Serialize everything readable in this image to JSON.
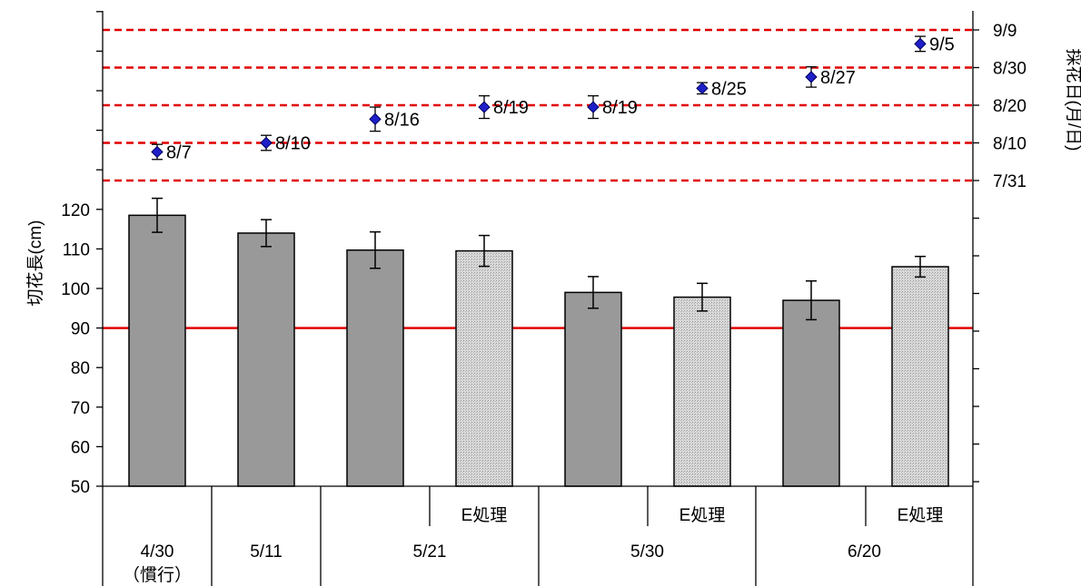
{
  "chart_data": {
    "type": "bar",
    "left_axis": {
      "label": "切花長(cm)",
      "ylim": [
        50,
        130
      ],
      "ticks": [
        50,
        60,
        70,
        80,
        90,
        100,
        110,
        120
      ]
    },
    "right_axis": {
      "label": "採花日(月/日)",
      "tick_labels": [
        "7/31",
        "8/10",
        "8/20",
        "8/30",
        "9/9"
      ]
    },
    "reference_line": {
      "y": 90,
      "color": "#e00000"
    },
    "date_gridline_color": "#e00000",
    "bar_colors": {
      "standard": "#999999",
      "E処理": "#d9d9d9"
    },
    "marker_color": "#1f1fc8",
    "groups": [
      {
        "label": "4/30",
        "sublabel": "（慣行）"
      },
      {
        "label": "5/11",
        "sublabel": ""
      },
      {
        "label": "5/21",
        "sublabel": ""
      },
      {
        "label": "5/30",
        "sublabel": ""
      },
      {
        "label": "6/20",
        "sublabel": ""
      }
    ],
    "bars": [
      {
        "group": 0,
        "treatment": "",
        "value": 118.5,
        "err": 4.3,
        "harvest_label": "8/7",
        "harvest_pos": 0.76,
        "harvest_err": 0.2
      },
      {
        "group": 1,
        "treatment": "",
        "value": 114.0,
        "err": 3.4,
        "harvest_label": "8/10",
        "harvest_pos": 1.0,
        "harvest_err": 0.2
      },
      {
        "group": 2,
        "treatment": "",
        "value": 109.7,
        "err": 4.6,
        "harvest_label": "8/16",
        "harvest_pos": 1.63,
        "harvest_err": 0.32
      },
      {
        "group": 2,
        "treatment": "E処理",
        "value": 109.5,
        "err": 3.9,
        "harvest_label": "8/19",
        "harvest_pos": 1.95,
        "harvest_err": 0.3
      },
      {
        "group": 3,
        "treatment": "",
        "value": 99.0,
        "err": 4.0,
        "harvest_label": "8/19",
        "harvest_pos": 1.95,
        "harvest_err": 0.3
      },
      {
        "group": 3,
        "treatment": "E処理",
        "value": 97.8,
        "err": 3.5,
        "harvest_label": "8/25",
        "harvest_pos": 2.45,
        "harvest_err": 0.15
      },
      {
        "group": 4,
        "treatment": "",
        "value": 97.0,
        "err": 4.9,
        "harvest_label": "8/27",
        "harvest_pos": 2.75,
        "harvest_err": 0.27
      },
      {
        "group": 4,
        "treatment": "E処理",
        "value": 105.5,
        "err": 2.6,
        "harvest_label": "9/5",
        "harvest_pos": 3.63,
        "harvest_err": 0.2
      }
    ]
  }
}
